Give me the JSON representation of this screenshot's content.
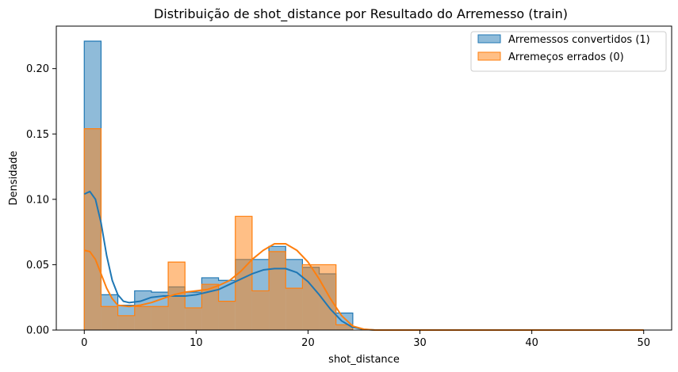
{
  "chart_data": {
    "type": "histogram",
    "title": "Distribuição de shot_distance por Resultado do Arremesso (train)",
    "xlabel": "shot_distance",
    "ylabel": "Densidade",
    "xlim": [
      -2.5,
      52.5
    ],
    "ylim": [
      0,
      0.2325
    ],
    "x_ticks": [
      0,
      10,
      20,
      30,
      40,
      50
    ],
    "y_ticks": [
      0.0,
      0.05,
      0.1,
      0.15,
      0.2
    ],
    "x_tick_labels": [
      "0",
      "10",
      "20",
      "30",
      "40",
      "50"
    ],
    "y_tick_labels": [
      "0.00",
      "0.05",
      "0.10",
      "0.15",
      "0.20"
    ],
    "grid": false,
    "legend_position": "top-right",
    "bin_width": 1.5,
    "series": [
      {
        "name": "Arremessos convertidos (1)",
        "color": "#1f77b4",
        "bins": [
          {
            "x0": 0.0,
            "x1": 1.5,
            "density": 0.221
          },
          {
            "x0": 1.5,
            "x1": 3.0,
            "density": 0.027
          },
          {
            "x0": 3.0,
            "x1": 4.5,
            "density": 0.019
          },
          {
            "x0": 4.5,
            "x1": 6.0,
            "density": 0.03
          },
          {
            "x0": 6.0,
            "x1": 7.5,
            "density": 0.029
          },
          {
            "x0": 7.5,
            "x1": 9.0,
            "density": 0.033
          },
          {
            "x0": 9.0,
            "x1": 10.5,
            "density": 0.029
          },
          {
            "x0": 10.5,
            "x1": 12.0,
            "density": 0.04
          },
          {
            "x0": 12.0,
            "x1": 13.5,
            "density": 0.038
          },
          {
            "x0": 13.5,
            "x1": 15.0,
            "density": 0.054
          },
          {
            "x0": 15.0,
            "x1": 16.5,
            "density": 0.054
          },
          {
            "x0": 16.5,
            "x1": 18.0,
            "density": 0.064
          },
          {
            "x0": 18.0,
            "x1": 19.5,
            "density": 0.054
          },
          {
            "x0": 19.5,
            "x1": 21.0,
            "density": 0.048
          },
          {
            "x0": 21.0,
            "x1": 22.5,
            "density": 0.043
          },
          {
            "x0": 22.5,
            "x1": 24.0,
            "density": 0.013
          }
        ],
        "kde": [
          [
            0.0,
            0.104
          ],
          [
            0.5,
            0.106
          ],
          [
            1.0,
            0.1
          ],
          [
            1.5,
            0.082
          ],
          [
            2.0,
            0.057
          ],
          [
            2.5,
            0.038
          ],
          [
            3.0,
            0.027
          ],
          [
            3.5,
            0.022
          ],
          [
            4.0,
            0.021
          ],
          [
            5.0,
            0.022
          ],
          [
            6.0,
            0.025
          ],
          [
            7.0,
            0.026
          ],
          [
            8.0,
            0.026
          ],
          [
            9.0,
            0.026
          ],
          [
            10.0,
            0.027
          ],
          [
            11.0,
            0.029
          ],
          [
            12.0,
            0.031
          ],
          [
            13.0,
            0.035
          ],
          [
            14.0,
            0.039
          ],
          [
            15.0,
            0.043
          ],
          [
            16.0,
            0.046
          ],
          [
            17.0,
            0.047
          ],
          [
            18.0,
            0.047
          ],
          [
            19.0,
            0.044
          ],
          [
            20.0,
            0.037
          ],
          [
            21.0,
            0.027
          ],
          [
            22.0,
            0.016
          ],
          [
            23.0,
            0.007
          ],
          [
            24.0,
            0.002
          ],
          [
            25.0,
            0.0005
          ],
          [
            26.0,
            0.0
          ],
          [
            50.0,
            0.0
          ]
        ]
      },
      {
        "name": "Arremeços errados (0)",
        "color": "#ff7f0e",
        "bins": [
          {
            "x0": 0.0,
            "x1": 1.5,
            "density": 0.154
          },
          {
            "x0": 1.5,
            "x1": 3.0,
            "density": 0.018
          },
          {
            "x0": 3.0,
            "x1": 4.5,
            "density": 0.011
          },
          {
            "x0": 4.5,
            "x1": 6.0,
            "density": 0.018
          },
          {
            "x0": 6.0,
            "x1": 7.5,
            "density": 0.018
          },
          {
            "x0": 7.5,
            "x1": 9.0,
            "density": 0.052
          },
          {
            "x0": 9.0,
            "x1": 10.5,
            "density": 0.017
          },
          {
            "x0": 10.5,
            "x1": 12.0,
            "density": 0.035
          },
          {
            "x0": 12.0,
            "x1": 13.5,
            "density": 0.022
          },
          {
            "x0": 13.5,
            "x1": 15.0,
            "density": 0.087
          },
          {
            "x0": 15.0,
            "x1": 16.5,
            "density": 0.03
          },
          {
            "x0": 16.5,
            "x1": 18.0,
            "density": 0.06
          },
          {
            "x0": 18.0,
            "x1": 19.5,
            "density": 0.032
          },
          {
            "x0": 19.5,
            "x1": 21.0,
            "density": 0.05
          },
          {
            "x0": 21.0,
            "x1": 22.5,
            "density": 0.05
          },
          {
            "x0": 22.5,
            "x1": 24.0,
            "density": 0.004
          }
        ],
        "kde": [
          [
            0.0,
            0.061
          ],
          [
            0.5,
            0.06
          ],
          [
            1.0,
            0.054
          ],
          [
            1.5,
            0.043
          ],
          [
            2.0,
            0.032
          ],
          [
            2.5,
            0.024
          ],
          [
            3.0,
            0.019
          ],
          [
            4.0,
            0.018
          ],
          [
            5.0,
            0.019
          ],
          [
            6.0,
            0.021
          ],
          [
            7.0,
            0.024
          ],
          [
            8.0,
            0.027
          ],
          [
            9.0,
            0.029
          ],
          [
            10.0,
            0.03
          ],
          [
            11.0,
            0.031
          ],
          [
            12.0,
            0.034
          ],
          [
            13.0,
            0.038
          ],
          [
            14.0,
            0.045
          ],
          [
            15.0,
            0.054
          ],
          [
            16.0,
            0.061
          ],
          [
            17.0,
            0.066
          ],
          [
            18.0,
            0.066
          ],
          [
            19.0,
            0.061
          ],
          [
            20.0,
            0.052
          ],
          [
            21.0,
            0.039
          ],
          [
            22.0,
            0.024
          ],
          [
            23.0,
            0.011
          ],
          [
            24.0,
            0.003
          ],
          [
            25.0,
            0.0006
          ],
          [
            26.0,
            0.0
          ],
          [
            50.0,
            0.0
          ]
        ]
      }
    ]
  }
}
